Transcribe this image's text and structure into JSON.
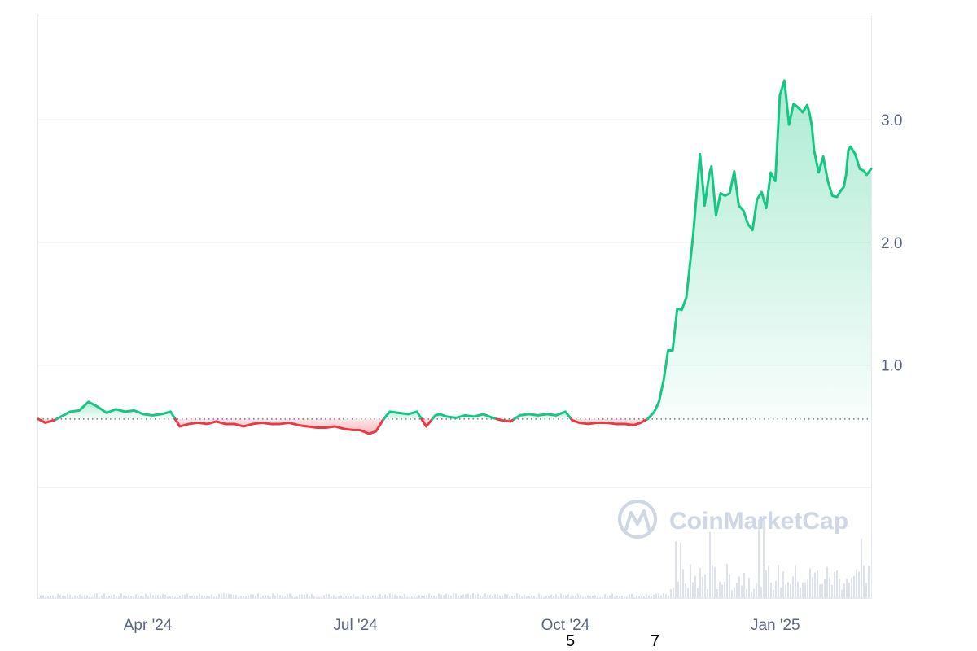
{
  "colors": {
    "up": "#16c784",
    "down": "#ea3943",
    "grid": "#eff2f5",
    "axis": "#58667e",
    "watermark": "#cfd6e4",
    "volume": "#dde2ea"
  },
  "watermark": {
    "text": "CoinMarketCap",
    "icon": "coinmarketcap-logo-icon"
  },
  "stray_labels": [
    "5",
    "7"
  ],
  "chart_data": {
    "type": "area",
    "baseline": 0.56,
    "ylim": [
      -0.9,
      3.85
    ],
    "xlim": [
      "2024-02-13",
      "2025-02-12"
    ],
    "x_ticks": [
      {
        "date": "2024-04-01",
        "label": "Apr '24"
      },
      {
        "date": "2024-07-01",
        "label": "Jul '24"
      },
      {
        "date": "2024-10-01",
        "label": "Oct '24"
      },
      {
        "date": "2025-01-01",
        "label": "Jan '25"
      }
    ],
    "y_ticks": [
      {
        "value": 3.0,
        "label": "3.0"
      },
      {
        "value": 2.0,
        "label": "2.0"
      },
      {
        "value": 1.0,
        "label": "1.0"
      }
    ],
    "y_grid": [
      3.0,
      2.0,
      1.0,
      0.0
    ],
    "grid": true,
    "series": [
      {
        "x": [
          "2024-02-13",
          "2024-02-16",
          "2024-02-20",
          "2024-02-23",
          "2024-02-27",
          "2024-03-02",
          "2024-03-06",
          "2024-03-10",
          "2024-03-14",
          "2024-03-18",
          "2024-03-22",
          "2024-03-26",
          "2024-03-30",
          "2024-04-03",
          "2024-04-07",
          "2024-04-11",
          "2024-04-15",
          "2024-04-19",
          "2024-04-23",
          "2024-04-27",
          "2024-05-01",
          "2024-05-05",
          "2024-05-09",
          "2024-05-13",
          "2024-05-17",
          "2024-05-21",
          "2024-05-25",
          "2024-05-29",
          "2024-06-02",
          "2024-06-06",
          "2024-06-10",
          "2024-06-14",
          "2024-06-18",
          "2024-06-22",
          "2024-06-26",
          "2024-06-30",
          "2024-07-03",
          "2024-07-07",
          "2024-07-10",
          "2024-07-13",
          "2024-07-16",
          "2024-07-20",
          "2024-07-24",
          "2024-07-28",
          "2024-08-01",
          "2024-08-05",
          "2024-08-07",
          "2024-08-10",
          "2024-08-14",
          "2024-08-18",
          "2024-08-22",
          "2024-08-26",
          "2024-08-30",
          "2024-09-03",
          "2024-09-07",
          "2024-09-11",
          "2024-09-15",
          "2024-09-19",
          "2024-09-23",
          "2024-09-27",
          "2024-10-01",
          "2024-10-04",
          "2024-10-07",
          "2024-10-11",
          "2024-10-15",
          "2024-10-19",
          "2024-10-23",
          "2024-10-27",
          "2024-10-31",
          "2024-11-03",
          "2024-11-06",
          "2024-11-09",
          "2024-11-11",
          "2024-11-13",
          "2024-11-15",
          "2024-11-17",
          "2024-11-19",
          "2024-11-21",
          "2024-11-23",
          "2024-11-26",
          "2024-11-29",
          "2024-12-01",
          "2024-12-03",
          "2024-12-04",
          "2024-12-06",
          "2024-12-08",
          "2024-12-10",
          "2024-12-12",
          "2024-12-14",
          "2024-12-16",
          "2024-12-18",
          "2024-12-20",
          "2024-12-22",
          "2024-12-24",
          "2024-12-26",
          "2024-12-28",
          "2024-12-30",
          "2025-01-01",
          "2025-01-03",
          "2025-01-05",
          "2025-01-07",
          "2025-01-09",
          "2025-01-11",
          "2025-01-13",
          "2025-01-15",
          "2025-01-16",
          "2025-01-17",
          "2025-01-18",
          "2025-01-20",
          "2025-01-22",
          "2025-01-24",
          "2025-01-26",
          "2025-01-28",
          "2025-01-30",
          "2025-01-31",
          "2025-02-01",
          "2025-02-02",
          "2025-02-03",
          "2025-02-05",
          "2025-02-07",
          "2025-02-09",
          "2025-02-10",
          "2025-02-12"
        ],
        "values": [
          0.56,
          0.53,
          0.55,
          0.58,
          0.62,
          0.63,
          0.7,
          0.66,
          0.61,
          0.64,
          0.62,
          0.63,
          0.6,
          0.59,
          0.6,
          0.62,
          0.5,
          0.52,
          0.53,
          0.52,
          0.54,
          0.52,
          0.52,
          0.5,
          0.52,
          0.53,
          0.52,
          0.52,
          0.53,
          0.51,
          0.5,
          0.49,
          0.49,
          0.5,
          0.48,
          0.47,
          0.47,
          0.44,
          0.46,
          0.55,
          0.62,
          0.61,
          0.6,
          0.62,
          0.5,
          0.59,
          0.6,
          0.58,
          0.57,
          0.59,
          0.58,
          0.6,
          0.57,
          0.55,
          0.54,
          0.59,
          0.6,
          0.59,
          0.6,
          0.59,
          0.62,
          0.55,
          0.53,
          0.52,
          0.53,
          0.53,
          0.52,
          0.52,
          0.51,
          0.53,
          0.56,
          0.62,
          0.7,
          0.87,
          1.12,
          1.12,
          1.46,
          1.45,
          1.55,
          2.06,
          2.72,
          2.3,
          2.55,
          2.62,
          2.22,
          2.4,
          2.38,
          2.4,
          2.58,
          2.3,
          2.26,
          2.15,
          2.1,
          2.35,
          2.41,
          2.28,
          2.57,
          2.5,
          3.2,
          3.32,
          2.96,
          3.13,
          3.1,
          3.06,
          3.12,
          3.05,
          2.95,
          2.75,
          2.57,
          2.7,
          2.5,
          2.38,
          2.37,
          2.43,
          2.45,
          2.55,
          2.75,
          2.78,
          2.72,
          2.6,
          2.58,
          2.55,
          2.6
        ]
      }
    ]
  }
}
